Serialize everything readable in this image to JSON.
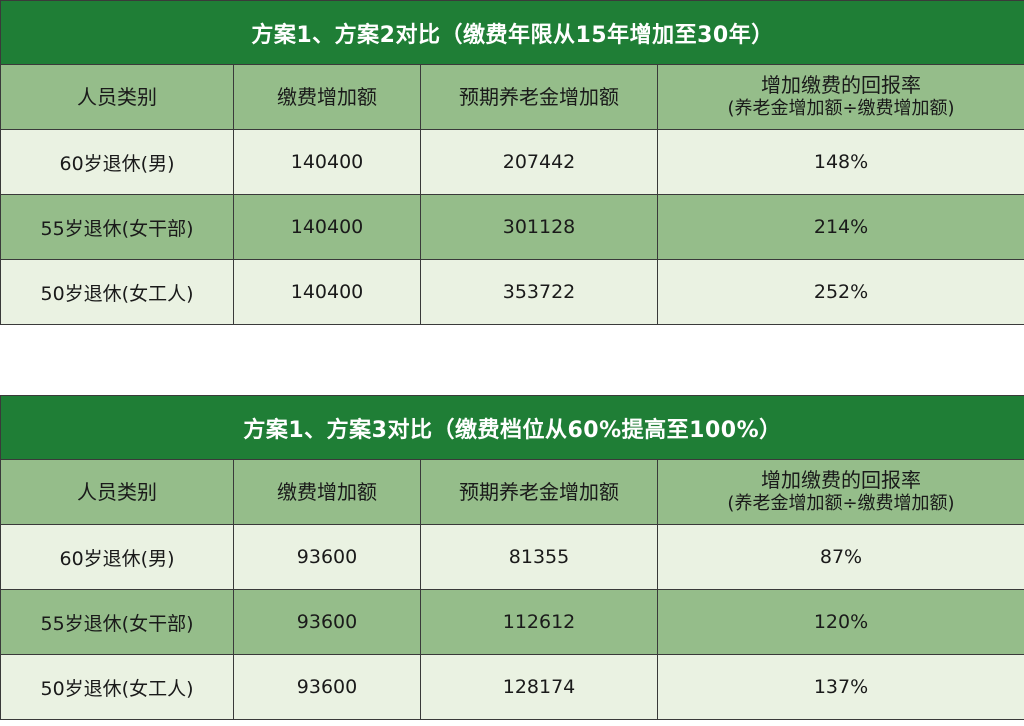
{
  "tables": [
    {
      "title": "方案1、方案2对比（缴费年限从15年增加至30年）",
      "headers": [
        "人员类别",
        "缴费增加额",
        "预期养老金增加额",
        "增加缴费的回报率"
      ],
      "header_sub": "(养老金增加额÷缴费增加额)",
      "rows": [
        {
          "category": "60岁退休(男)",
          "contribution_increase": "140400",
          "pension_increase": "207442",
          "return_rate": "148%"
        },
        {
          "category": "55岁退休(女干部)",
          "contribution_increase": "140400",
          "pension_increase": "301128",
          "return_rate": "214%"
        },
        {
          "category": "50岁退休(女工人)",
          "contribution_increase": "140400",
          "pension_increase": "353722",
          "return_rate": "252%"
        }
      ]
    },
    {
      "title": "方案1、方案3对比（缴费档位从60%提高至100%）",
      "headers": [
        "人员类别",
        "缴费增加额",
        "预期养老金增加额",
        "增加缴费的回报率"
      ],
      "header_sub": "(养老金增加额÷缴费增加额)",
      "rows": [
        {
          "category": "60岁退休(男)",
          "contribution_increase": "93600",
          "pension_increase": "81355",
          "return_rate": "87%"
        },
        {
          "category": "55岁退休(女干部)",
          "contribution_increase": "93600",
          "pension_increase": "112612",
          "return_rate": "120%"
        },
        {
          "category": "50岁退休(女工人)",
          "contribution_increase": "93600",
          "pension_increase": "128174",
          "return_rate": "137%"
        }
      ]
    }
  ],
  "colors": {
    "title_bg": "#1f7e36",
    "title_text": "#ffffff",
    "header_bg": "#95bd8a",
    "row_light": "#eaf2e2",
    "row_dark": "#95bd8a",
    "border": "#3a3a3a"
  }
}
